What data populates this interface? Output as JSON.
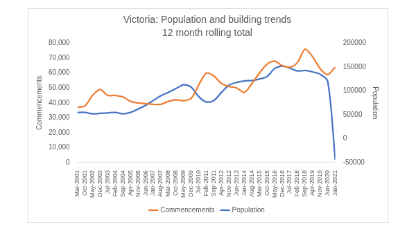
{
  "chart_data": {
    "type": "line",
    "title": "Victoria: Population and building trends",
    "subtitle": "12 month rolling total",
    "y_label": "Commencements",
    "y2_label": "Population",
    "categories": [
      "Mar-2001",
      "Oct-2001",
      "May-2002",
      "Dec-2002",
      "Jul-2003",
      "Feb-2004",
      "Sep-2004",
      "Apr-2005",
      "Nov-2005",
      "Jun-2006",
      "Jan-2007",
      "Aug-2007",
      "Mar-2008",
      "Oct-2008",
      "May-2009",
      "Dec-2009",
      "Jul-2010",
      "Feb-2011",
      "Sep-2011",
      "Apr-2012",
      "Nov-2012",
      "Jun-2013",
      "Jan-2014",
      "Aug-2014",
      "Mar-2015",
      "Oct-2015",
      "May-2016",
      "Dec-2016",
      "Jul-2017",
      "Feb-2018",
      "Sep-2018",
      "Apr-2019",
      "Nov-2019",
      "Jun-2020",
      "Jan-2021"
    ],
    "series": [
      {
        "name": "Commencements",
        "color": "#ed7d31",
        "axis": "y",
        "values": [
          37000,
          38000,
          45000,
          49000,
          45000,
          45000,
          44000,
          41000,
          40000,
          39500,
          39000,
          39000,
          41000,
          42000,
          41500,
          43000,
          52000,
          60000,
          58000,
          53000,
          51000,
          50000,
          47000,
          53000,
          60000,
          66000,
          68000,
          65000,
          64000,
          67000,
          76000,
          71000,
          63000,
          59000,
          64000
        ]
      },
      {
        "name": "Population",
        "color": "#4472c4",
        "axis": "y2",
        "values": [
          55000,
          55000,
          52000,
          53000,
          54000,
          55000,
          52000,
          55000,
          62000,
          70000,
          80000,
          90000,
          97000,
          105000,
          113000,
          108000,
          88000,
          77000,
          80000,
          97000,
          112000,
          118000,
          121000,
          122000,
          125000,
          130000,
          147000,
          152000,
          148000,
          142000,
          143000,
          140000,
          135000,
          120000,
          -45000
        ]
      }
    ],
    "ylim": [
      0,
      80000
    ],
    "yticks": [
      0,
      {
        "value": 10000,
        "label": "10,000"
      },
      {
        "value": 20000,
        "label": "20,000"
      },
      {
        "value": 30000,
        "label": "30,000"
      },
      {
        "value": 40000,
        "label": "40,000"
      },
      {
        "value": 50000,
        "label": "50,000"
      },
      {
        "value": 60000,
        "label": "60,000"
      },
      {
        "value": 70000,
        "label": "70,000"
      },
      {
        "value": 80000,
        "label": "80,000"
      }
    ],
    "y2lim": [
      -50000,
      200000
    ],
    "y2ticks": [
      -50000,
      0,
      50000,
      100000,
      150000,
      200000
    ],
    "grid": false,
    "legend": "bottom"
  }
}
